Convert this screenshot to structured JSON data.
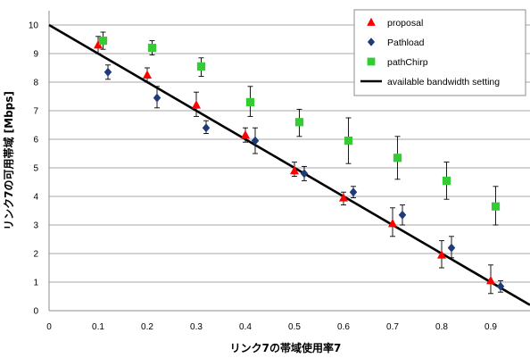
{
  "chart_data": {
    "type": "scatter",
    "xlabel": "リンク7の帯域使用率7",
    "ylabel": "リンク7の可用帯域 [Mbps]",
    "xlim": [
      0,
      0.98
    ],
    "ylim": [
      0,
      10.5
    ],
    "x_ticks": [
      "0",
      "0.1",
      "0.2",
      "0.3",
      "0.4",
      "0.5",
      "0.6",
      "0.7",
      "0.8",
      "0.9"
    ],
    "y_ticks": [
      "0",
      "1",
      "2",
      "3",
      "4",
      "5",
      "6",
      "7",
      "8",
      "9",
      "10"
    ],
    "grid": "horizontal",
    "legend_position": "top-right",
    "series": [
      {
        "name": "proposal",
        "marker": "triangle",
        "color": "#ff0000",
        "points": [
          {
            "x": 0.1,
            "y": 9.3,
            "lo": 9.0,
            "hi": 9.6
          },
          {
            "x": 0.2,
            "y": 8.25,
            "lo": 8.0,
            "hi": 8.5
          },
          {
            "x": 0.3,
            "y": 7.2,
            "lo": 6.8,
            "hi": 7.65
          },
          {
            "x": 0.4,
            "y": 6.15,
            "lo": 5.9,
            "hi": 6.4
          },
          {
            "x": 0.5,
            "y": 4.9,
            "lo": 4.7,
            "hi": 5.2
          },
          {
            "x": 0.6,
            "y": 3.95,
            "lo": 3.7,
            "hi": 4.15
          },
          {
            "x": 0.7,
            "y": 3.05,
            "lo": 2.6,
            "hi": 3.6
          },
          {
            "x": 0.8,
            "y": 1.95,
            "lo": 1.5,
            "hi": 2.45
          },
          {
            "x": 0.9,
            "y": 1.05,
            "lo": 0.6,
            "hi": 1.6
          }
        ]
      },
      {
        "name": "Pathload",
        "marker": "diamond",
        "color": "#1f3a7a",
        "points": [
          {
            "x": 0.12,
            "y": 8.35,
            "lo": 8.1,
            "hi": 8.6
          },
          {
            "x": 0.22,
            "y": 7.45,
            "lo": 7.1,
            "hi": 7.85
          },
          {
            "x": 0.32,
            "y": 6.4,
            "lo": 6.2,
            "hi": 6.65
          },
          {
            "x": 0.42,
            "y": 5.95,
            "lo": 5.5,
            "hi": 6.4
          },
          {
            "x": 0.52,
            "y": 4.8,
            "lo": 4.55,
            "hi": 5.05
          },
          {
            "x": 0.62,
            "y": 4.15,
            "lo": 3.95,
            "hi": 4.35
          },
          {
            "x": 0.72,
            "y": 3.35,
            "lo": 3.0,
            "hi": 3.7
          },
          {
            "x": 0.82,
            "y": 2.2,
            "lo": 1.85,
            "hi": 2.6
          },
          {
            "x": 0.92,
            "y": 0.85,
            "lo": 0.65,
            "hi": 1.05
          }
        ]
      },
      {
        "name": "pathChirp",
        "marker": "square",
        "color": "#33cc33",
        "points": [
          {
            "x": 0.11,
            "y": 9.45,
            "lo": 9.15,
            "hi": 9.75
          },
          {
            "x": 0.21,
            "y": 9.2,
            "lo": 8.95,
            "hi": 9.45
          },
          {
            "x": 0.31,
            "y": 8.55,
            "lo": 8.2,
            "hi": 8.85
          },
          {
            "x": 0.41,
            "y": 7.3,
            "lo": 6.8,
            "hi": 7.85
          },
          {
            "x": 0.51,
            "y": 6.6,
            "lo": 6.1,
            "hi": 7.05
          },
          {
            "x": 0.61,
            "y": 5.95,
            "lo": 5.15,
            "hi": 6.75
          },
          {
            "x": 0.71,
            "y": 5.35,
            "lo": 4.6,
            "hi": 6.1
          },
          {
            "x": 0.81,
            "y": 4.55,
            "lo": 3.9,
            "hi": 5.2
          },
          {
            "x": 0.91,
            "y": 3.65,
            "lo": 3.0,
            "hi": 4.35
          }
        ]
      },
      {
        "name": "available bandwidth setting",
        "marker": "line",
        "color": "#000000",
        "x": [
          0,
          0.98
        ],
        "y": [
          10.0,
          0.2
        ]
      }
    ]
  }
}
